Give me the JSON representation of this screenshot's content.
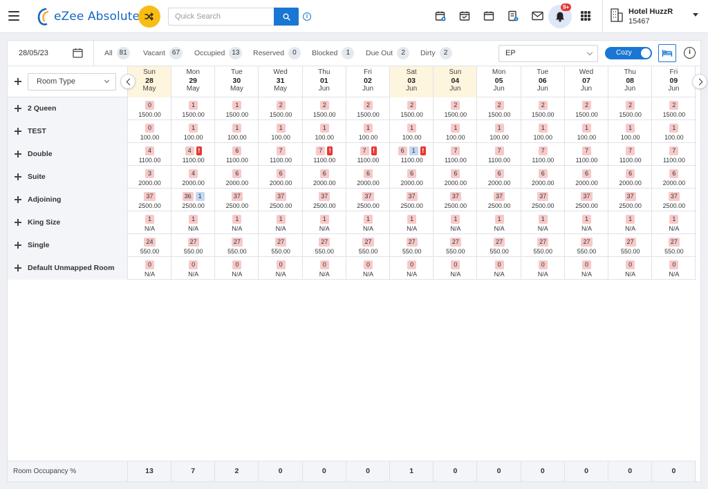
{
  "app": {
    "logo_text": "eZee Absolute",
    "search_placeholder": "Quick Search",
    "notification_badge": "9+",
    "hotel_name": "Hotel HuzzR",
    "hotel_id": "15467",
    "accent_color": "#1976d2"
  },
  "toolbar": {
    "date": "28/05/23",
    "filters": [
      {
        "label": "All",
        "count": "81"
      },
      {
        "label": "Vacant",
        "count": "67"
      },
      {
        "label": "Occupied",
        "count": "13"
      },
      {
        "label": "Reserved",
        "count": "0"
      },
      {
        "label": "Blocked",
        "count": "1"
      },
      {
        "label": "Due Out",
        "count": "2"
      },
      {
        "label": "Dirty",
        "count": "2"
      }
    ],
    "rate_plan": "EP",
    "view_mode": "Cozy"
  },
  "grid": {
    "room_type_label": "Room Type",
    "days": [
      {
        "dow": "Sun",
        "day": "28",
        "month": "May",
        "weekend": true
      },
      {
        "dow": "Mon",
        "day": "29",
        "month": "May",
        "weekend": false
      },
      {
        "dow": "Tue",
        "day": "30",
        "month": "May",
        "weekend": false
      },
      {
        "dow": "Wed",
        "day": "31",
        "month": "May",
        "weekend": false
      },
      {
        "dow": "Thu",
        "day": "01",
        "month": "Jun",
        "weekend": false
      },
      {
        "dow": "Fri",
        "day": "02",
        "month": "Jun",
        "weekend": false
      },
      {
        "dow": "Sat",
        "day": "03",
        "month": "Jun",
        "weekend": true
      },
      {
        "dow": "Sun",
        "day": "04",
        "month": "Jun",
        "weekend": true
      },
      {
        "dow": "Mon",
        "day": "05",
        "month": "Jun",
        "weekend": false
      },
      {
        "dow": "Tue",
        "day": "06",
        "month": "Jun",
        "weekend": false
      },
      {
        "dow": "Wed",
        "day": "07",
        "month": "Jun",
        "weekend": false
      },
      {
        "dow": "Thu",
        "day": "08",
        "month": "Jun",
        "weekend": false
      },
      {
        "dow": "Fri",
        "day": "09",
        "month": "Jun",
        "weekend": false
      }
    ],
    "rooms": [
      {
        "name": "2 Queen",
        "avail": [
          "0",
          "1",
          "1",
          "2",
          "2",
          "2",
          "2",
          "2",
          "2",
          "2",
          "2",
          "2",
          "2"
        ],
        "rate": [
          "1500.00",
          "1500.00",
          "1500.00",
          "1500.00",
          "1500.00",
          "1500.00",
          "1500.00",
          "1500.00",
          "1500.00",
          "1500.00",
          "1500.00",
          "1500.00",
          "1500.00"
        ],
        "extra": {}
      },
      {
        "name": "TEST",
        "avail": [
          "0",
          "1",
          "1",
          "1",
          "1",
          "1",
          "1",
          "1",
          "1",
          "1",
          "1",
          "1",
          "1"
        ],
        "rate": [
          "100.00",
          "100.00",
          "100.00",
          "100.00",
          "100.00",
          "100.00",
          "100.00",
          "100.00",
          "100.00",
          "100.00",
          "100.00",
          "100.00",
          "100.00"
        ],
        "extra": {}
      },
      {
        "name": "Double",
        "avail": [
          "4",
          "4",
          "6",
          "7",
          "7",
          "7",
          "6",
          "7",
          "7",
          "7",
          "7",
          "7",
          "7"
        ],
        "rate": [
          "1100.00",
          "1100.00",
          "1100.00",
          "1100.00",
          "1100.00",
          "1100.00",
          "1100.00",
          "1100.00",
          "1100.00",
          "1100.00",
          "1100.00",
          "1100.00",
          "1100.00"
        ],
        "extra": {
          "1": {
            "alert": "!"
          },
          "4": {
            "alert": "!"
          },
          "5": {
            "alert": "!"
          },
          "6": {
            "blue": "1",
            "alert": "!"
          }
        }
      },
      {
        "name": "Suite",
        "avail": [
          "3",
          "4",
          "6",
          "6",
          "6",
          "6",
          "6",
          "6",
          "6",
          "6",
          "6",
          "6",
          "6"
        ],
        "rate": [
          "2000.00",
          "2000.00",
          "2000.00",
          "2000.00",
          "2000.00",
          "2000.00",
          "2000.00",
          "2000.00",
          "2000.00",
          "2000.00",
          "2000.00",
          "2000.00",
          "2000.00"
        ],
        "extra": {}
      },
      {
        "name": "Adjoining",
        "avail": [
          "37",
          "36",
          "37",
          "37",
          "37",
          "37",
          "37",
          "37",
          "37",
          "37",
          "37",
          "37",
          "37"
        ],
        "rate": [
          "2500.00",
          "2500.00",
          "2500.00",
          "2500.00",
          "2500.00",
          "2500.00",
          "2500.00",
          "2500.00",
          "2500.00",
          "2500.00",
          "2500.00",
          "2500.00",
          "2500.00"
        ],
        "extra": {
          "1": {
            "blue": "1"
          }
        }
      },
      {
        "name": "King Size",
        "avail": [
          "1",
          "1",
          "1",
          "1",
          "1",
          "1",
          "1",
          "1",
          "1",
          "1",
          "1",
          "1",
          "1"
        ],
        "rate": [
          "N/A",
          "N/A",
          "N/A",
          "N/A",
          "N/A",
          "N/A",
          "N/A",
          "N/A",
          "N/A",
          "N/A",
          "N/A",
          "N/A",
          "N/A"
        ],
        "extra": {}
      },
      {
        "name": "Single",
        "avail": [
          "24",
          "27",
          "27",
          "27",
          "27",
          "27",
          "27",
          "27",
          "27",
          "27",
          "27",
          "27",
          "27"
        ],
        "rate": [
          "550.00",
          "550.00",
          "550.00",
          "550.00",
          "550.00",
          "550.00",
          "550.00",
          "550.00",
          "550.00",
          "550.00",
          "550.00",
          "550.00",
          "550.00"
        ],
        "extra": {}
      },
      {
        "name": "Default Unmapped Room",
        "avail": [
          "0",
          "0",
          "0",
          "0",
          "0",
          "0",
          "0",
          "0",
          "0",
          "0",
          "0",
          "0",
          "0"
        ],
        "rate": [
          "N/A",
          "N/A",
          "N/A",
          "N/A",
          "N/A",
          "N/A",
          "N/A",
          "N/A",
          "N/A",
          "N/A",
          "N/A",
          "N/A",
          "N/A"
        ],
        "extra": {}
      }
    ],
    "footer_label": "Room Occupancy %",
    "occupancy": [
      "13",
      "7",
      "2",
      "0",
      "0",
      "0",
      "1",
      "0",
      "0",
      "0",
      "0",
      "0",
      "0"
    ]
  }
}
